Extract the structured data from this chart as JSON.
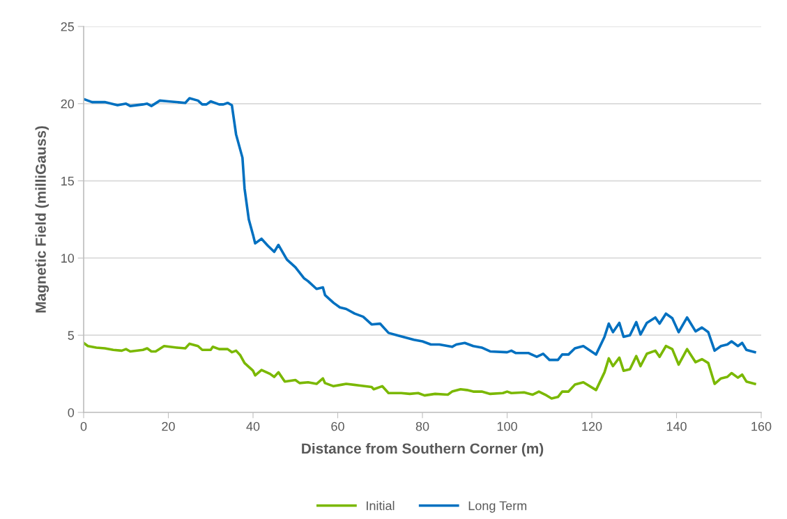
{
  "chart_data": {
    "type": "line",
    "xlabel": "Distance from Southern Corner (m)",
    "ylabel": "Magnetic Field (milliGauss)",
    "xlim": [
      0,
      160
    ],
    "xticks": [
      0,
      20,
      40,
      60,
      80,
      100,
      120,
      140,
      160
    ],
    "ylim": [
      0,
      25
    ],
    "yticks": [
      0,
      5,
      10,
      15,
      20,
      25
    ],
    "grid": "y",
    "legend": "bottom",
    "marker": "none",
    "line_style": "solid",
    "series": [
      {
        "name": "Initial",
        "color": "#7ab800",
        "x": [
          0,
          1,
          3,
          5,
          7,
          9,
          10,
          11,
          14,
          15,
          16,
          17,
          19,
          22,
          24,
          25,
          27,
          28,
          30,
          30.5,
          32,
          34,
          35,
          36,
          37,
          38,
          40,
          40.5,
          42,
          44,
          45,
          46,
          47.5,
          50,
          51,
          53,
          55,
          56.5,
          57,
          59,
          61,
          62,
          65,
          68,
          68.5,
          70.5,
          72,
          75,
          77,
          79,
          80.5,
          83,
          86,
          87,
          89,
          90.5,
          92,
          94,
          96,
          99,
          100,
          101,
          104,
          106,
          107.5,
          109,
          110.5,
          112,
          113,
          114.5,
          116,
          118,
          121,
          123,
          124,
          125,
          126.5,
          127.5,
          129,
          130.5,
          131.5,
          133,
          135,
          136,
          137.5,
          139,
          140.5,
          142.5,
          144.5,
          146,
          147.5,
          149,
          150.5,
          152,
          153,
          154.5,
          155.5,
          156.5,
          158.5
        ],
        "values": [
          4.5,
          4.3,
          4.2,
          4.15,
          4.05,
          4.0,
          4.1,
          3.95,
          4.05,
          4.15,
          3.95,
          3.95,
          4.3,
          4.2,
          4.15,
          4.45,
          4.3,
          4.05,
          4.05,
          4.25,
          4.1,
          4.1,
          3.9,
          4.0,
          3.7,
          3.2,
          2.7,
          2.4,
          2.75,
          2.5,
          2.3,
          2.6,
          2.0,
          2.1,
          1.9,
          1.95,
          1.85,
          2.2,
          1.9,
          1.7,
          1.8,
          1.85,
          1.75,
          1.65,
          1.5,
          1.7,
          1.25,
          1.25,
          1.2,
          1.25,
          1.1,
          1.2,
          1.15,
          1.35,
          1.5,
          1.45,
          1.35,
          1.35,
          1.2,
          1.25,
          1.35,
          1.25,
          1.3,
          1.15,
          1.35,
          1.15,
          0.9,
          1.0,
          1.35,
          1.35,
          1.8,
          1.95,
          1.45,
          2.6,
          3.5,
          3.0,
          3.55,
          2.7,
          2.8,
          3.65,
          3.0,
          3.8,
          4.0,
          3.6,
          4.3,
          4.1,
          3.1,
          4.1,
          3.25,
          3.45,
          3.2,
          1.85,
          2.2,
          2.3,
          2.55,
          2.25,
          2.45,
          2.0,
          1.85
        ]
      },
      {
        "name": "Long Term",
        "color": "#0070c0",
        "x": [
          0,
          2,
          5,
          8,
          10,
          11,
          14,
          15,
          16,
          18,
          20,
          24,
          25,
          27,
          28,
          29,
          30,
          32,
          33,
          34,
          35,
          36,
          37.5,
          38,
          39,
          40,
          40.5,
          42,
          43.5,
          45,
          46,
          48,
          50,
          52,
          53,
          55,
          56.5,
          57,
          59,
          60.5,
          62,
          64,
          66,
          68,
          70,
          72,
          74,
          76,
          78,
          80,
          82,
          84,
          87,
          88,
          90,
          92,
          94,
          96,
          100,
          101,
          102,
          105,
          107,
          108.5,
          110,
          112,
          113,
          114.5,
          116,
          118,
          121,
          123,
          124,
          125,
          126.5,
          127.5,
          129,
          130.5,
          131.5,
          133,
          135,
          136,
          137.5,
          139,
          140.5,
          142.5,
          144.5,
          146,
          147.5,
          149,
          150.5,
          152,
          153,
          154.5,
          155.5,
          156.5,
          158.5
        ],
        "values": [
          20.3,
          20.1,
          20.1,
          19.9,
          20.0,
          19.85,
          19.95,
          20.0,
          19.85,
          20.2,
          20.15,
          20.05,
          20.35,
          20.2,
          19.95,
          19.95,
          20.15,
          19.95,
          19.95,
          20.05,
          19.9,
          18.0,
          16.5,
          14.5,
          12.5,
          11.5,
          10.95,
          11.25,
          10.8,
          10.4,
          10.85,
          9.9,
          9.4,
          8.7,
          8.5,
          8.0,
          8.1,
          7.6,
          7.1,
          6.8,
          6.7,
          6.4,
          6.2,
          5.7,
          5.75,
          5.15,
          5.0,
          4.85,
          4.7,
          4.6,
          4.4,
          4.4,
          4.25,
          4.4,
          4.5,
          4.3,
          4.2,
          3.95,
          3.9,
          4.0,
          3.85,
          3.85,
          3.6,
          3.8,
          3.4,
          3.4,
          3.75,
          3.75,
          4.15,
          4.3,
          3.75,
          4.9,
          5.75,
          5.2,
          5.8,
          4.9,
          5.0,
          5.85,
          5.05,
          5.8,
          6.15,
          5.75,
          6.4,
          6.1,
          5.2,
          6.15,
          5.25,
          5.5,
          5.2,
          4.0,
          4.3,
          4.4,
          4.6,
          4.3,
          4.5,
          4.05,
          3.9
        ]
      }
    ]
  }
}
